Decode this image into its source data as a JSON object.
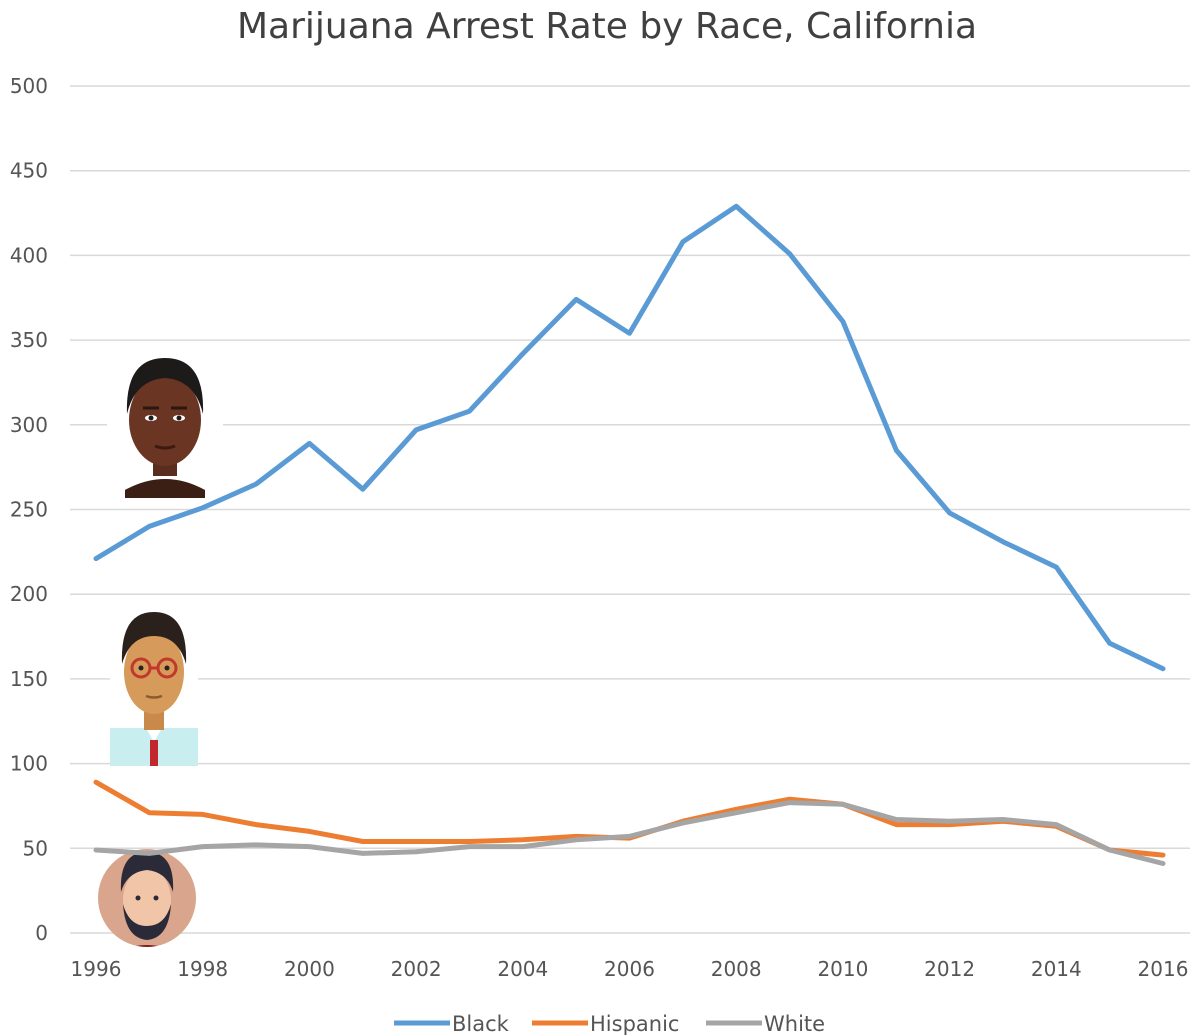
{
  "chart_data": {
    "type": "line",
    "title": "Marijuana Arrest Rate by Race, California",
    "x": [
      1996,
      1997,
      1998,
      1999,
      2000,
      2001,
      2002,
      2003,
      2004,
      2005,
      2006,
      2007,
      2008,
      2009,
      2010,
      2011,
      2012,
      2013,
      2014,
      2015,
      2016
    ],
    "x_tick_labels": [
      "1996",
      "1998",
      "2000",
      "2002",
      "2004",
      "2006",
      "2008",
      "2010",
      "2012",
      "2014",
      "2016"
    ],
    "y_tick_labels": [
      "0",
      "50",
      "100",
      "150",
      "200",
      "250",
      "300",
      "350",
      "400",
      "450",
      "500"
    ],
    "ylim": [
      0,
      500
    ],
    "xlim": [
      1996,
      2016
    ],
    "grid": true,
    "legend_position": "bottom",
    "series": [
      {
        "name": "Black",
        "color": "#5b9bd5",
        "values": [
          221,
          240,
          251,
          265,
          289,
          262,
          297,
          308,
          342,
          374,
          354,
          408,
          429,
          401,
          361,
          285,
          248,
          231,
          216,
          171,
          156
        ]
      },
      {
        "name": "Hispanic",
        "color": "#ed7d31",
        "values": [
          89,
          71,
          70,
          64,
          60,
          54,
          54,
          54,
          55,
          57,
          56,
          66,
          73,
          79,
          76,
          64,
          64,
          66,
          63,
          49,
          46
        ]
      },
      {
        "name": "White",
        "color": "#a5a5a5",
        "values": [
          49,
          47,
          51,
          52,
          51,
          47,
          48,
          51,
          51,
          55,
          57,
          65,
          71,
          77,
          76,
          67,
          66,
          67,
          64,
          49,
          41
        ]
      }
    ]
  },
  "icons": {
    "black_person": "black-person-avatar",
    "hispanic_person": "hispanic-person-avatar",
    "white_person": "white-person-avatar"
  }
}
